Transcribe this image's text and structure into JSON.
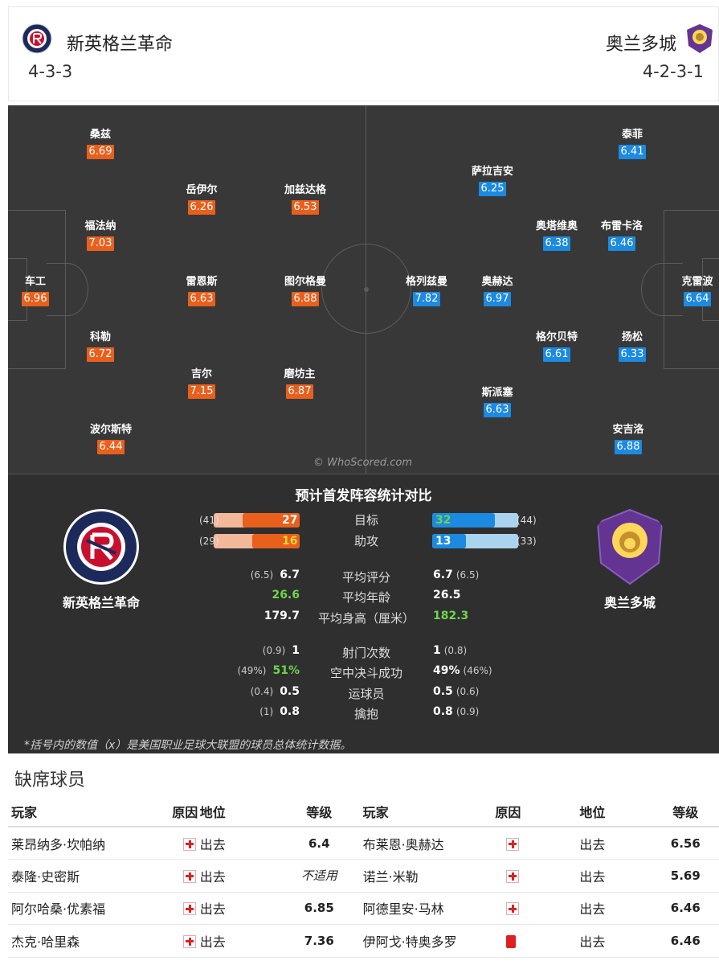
{
  "header": {
    "home": {
      "name": "新英格兰革命",
      "formation": "4-3-3"
    },
    "away": {
      "name": "奥兰多城",
      "formation": "4-2-3-1"
    }
  },
  "pitch": {
    "watermark": "© WhoScored.com",
    "home_players": [
      {
        "name": "车工",
        "rating": "6.96"
      },
      {
        "name": "桑兹",
        "rating": "6.69"
      },
      {
        "name": "福法纳",
        "rating": "7.03"
      },
      {
        "name": "科勒",
        "rating": "6.72"
      },
      {
        "name": "波尔斯特",
        "rating": "6.44"
      },
      {
        "name": "岳伊尔",
        "rating": "6.26"
      },
      {
        "name": "雷恩斯",
        "rating": "6.63"
      },
      {
        "name": "吉尔",
        "rating": "7.15"
      },
      {
        "name": "加兹达格",
        "rating": "6.53"
      },
      {
        "name": "图尔格曼",
        "rating": "6.88"
      },
      {
        "name": "磨坊主",
        "rating": "6.87"
      }
    ],
    "away_players": [
      {
        "name": "克雷波",
        "rating": "6.64"
      },
      {
        "name": "泰菲",
        "rating": "6.41"
      },
      {
        "name": "布雷卡洛",
        "rating": "6.46"
      },
      {
        "name": "扬松",
        "rating": "6.33"
      },
      {
        "name": "安吉洛",
        "rating": "6.88"
      },
      {
        "name": "萨拉吉安",
        "rating": "6.25"
      },
      {
        "name": "奥塔维奥",
        "rating": "6.38"
      },
      {
        "name": "奥赫达",
        "rating": "6.97"
      },
      {
        "name": "格尔贝特",
        "rating": "6.61"
      },
      {
        "name": "格列兹曼",
        "rating": "7.82"
      },
      {
        "name": "斯派塞",
        "rating": "6.63"
      }
    ]
  },
  "stats": {
    "title": "预计首发阵容统计对比",
    "home_team": "新英格兰革命",
    "away_team": "奥兰多城",
    "bars": [
      {
        "label": "目标",
        "home": 27,
        "home_avg": "(41)",
        "home_frac": 0.66,
        "away": 32,
        "away_avg": "(44)",
        "away_frac": 0.73
      },
      {
        "label": "助攻",
        "home": 16,
        "home_avg": "(29)",
        "home_frac": 0.55,
        "away": 13,
        "away_avg": "(33)",
        "away_frac": 0.39
      }
    ],
    "rows1": [
      {
        "label": "平均评分",
        "home": "6.7",
        "home_avg": "(6.5)",
        "away": "6.7",
        "away_avg": "(6.5)"
      },
      {
        "label": "平均年龄",
        "home": "26.6",
        "home_avg": "",
        "away": "26.5",
        "away_avg": ""
      },
      {
        "label": "平均身高（厘米）",
        "home": "179.7",
        "home_avg": "",
        "away": "182.3",
        "away_avg": ""
      }
    ],
    "rows2": [
      {
        "label": "射门次数",
        "home": "1",
        "home_avg": "(0.9)",
        "away": "1",
        "away_avg": "(0.8)"
      },
      {
        "label": "空中决斗成功",
        "home": "51%",
        "home_avg": "(49%)",
        "away": "49%",
        "away_avg": "(46%)"
      },
      {
        "label": "运球员",
        "home": "0.5",
        "home_avg": "(0.4)",
        "away": "0.5",
        "away_avg": "(0.6)"
      },
      {
        "label": "擒抱",
        "home": "0.8",
        "home_avg": "(1)",
        "away": "0.8",
        "away_avg": "(0.9)"
      }
    ],
    "footnote": "*括号内的数值（x）是美国职业足球大联盟的球员总体统计数据。"
  },
  "missing": {
    "title": "缺席球员",
    "headers": {
      "player": "玩家",
      "reason": "原因",
      "status": "地位",
      "rating": "等级"
    },
    "home": [
      {
        "player": "莱昂纳多·坎帕纳",
        "reason_icon": "injury-cross-icon",
        "status": "出去",
        "rating": "6.4"
      },
      {
        "player": "泰隆·史密斯",
        "reason_icon": "injury-cross-icon",
        "status": "出去",
        "rating": "不适用"
      },
      {
        "player": "阿尔哈桑·优素福",
        "reason_icon": "injury-cross-icon",
        "status": "出去",
        "rating": "6.85"
      },
      {
        "player": "杰克·哈里森",
        "reason_icon": "injury-cross-icon",
        "status": "出去",
        "rating": "7.36"
      }
    ],
    "away": [
      {
        "player": "布莱恩·奥赫达",
        "reason_icon": "injury-cross-icon",
        "status": "出去",
        "rating": "6.56"
      },
      {
        "player": "诺兰·米勒",
        "reason_icon": "injury-cross-icon",
        "status": "出去",
        "rating": "5.69"
      },
      {
        "player": "阿德里安·马林",
        "reason_icon": "injury-cross-icon",
        "status": "出去",
        "rating": "6.46"
      },
      {
        "player": "伊阿戈·特奥多罗",
        "reason_icon": "red-card-icon",
        "status": "出去",
        "rating": "6.46"
      }
    ]
  },
  "colors": {
    "home": "#e8601c",
    "away": "#1c8ae0",
    "pitch": "#383838",
    "panel": "#2f2f2f"
  }
}
